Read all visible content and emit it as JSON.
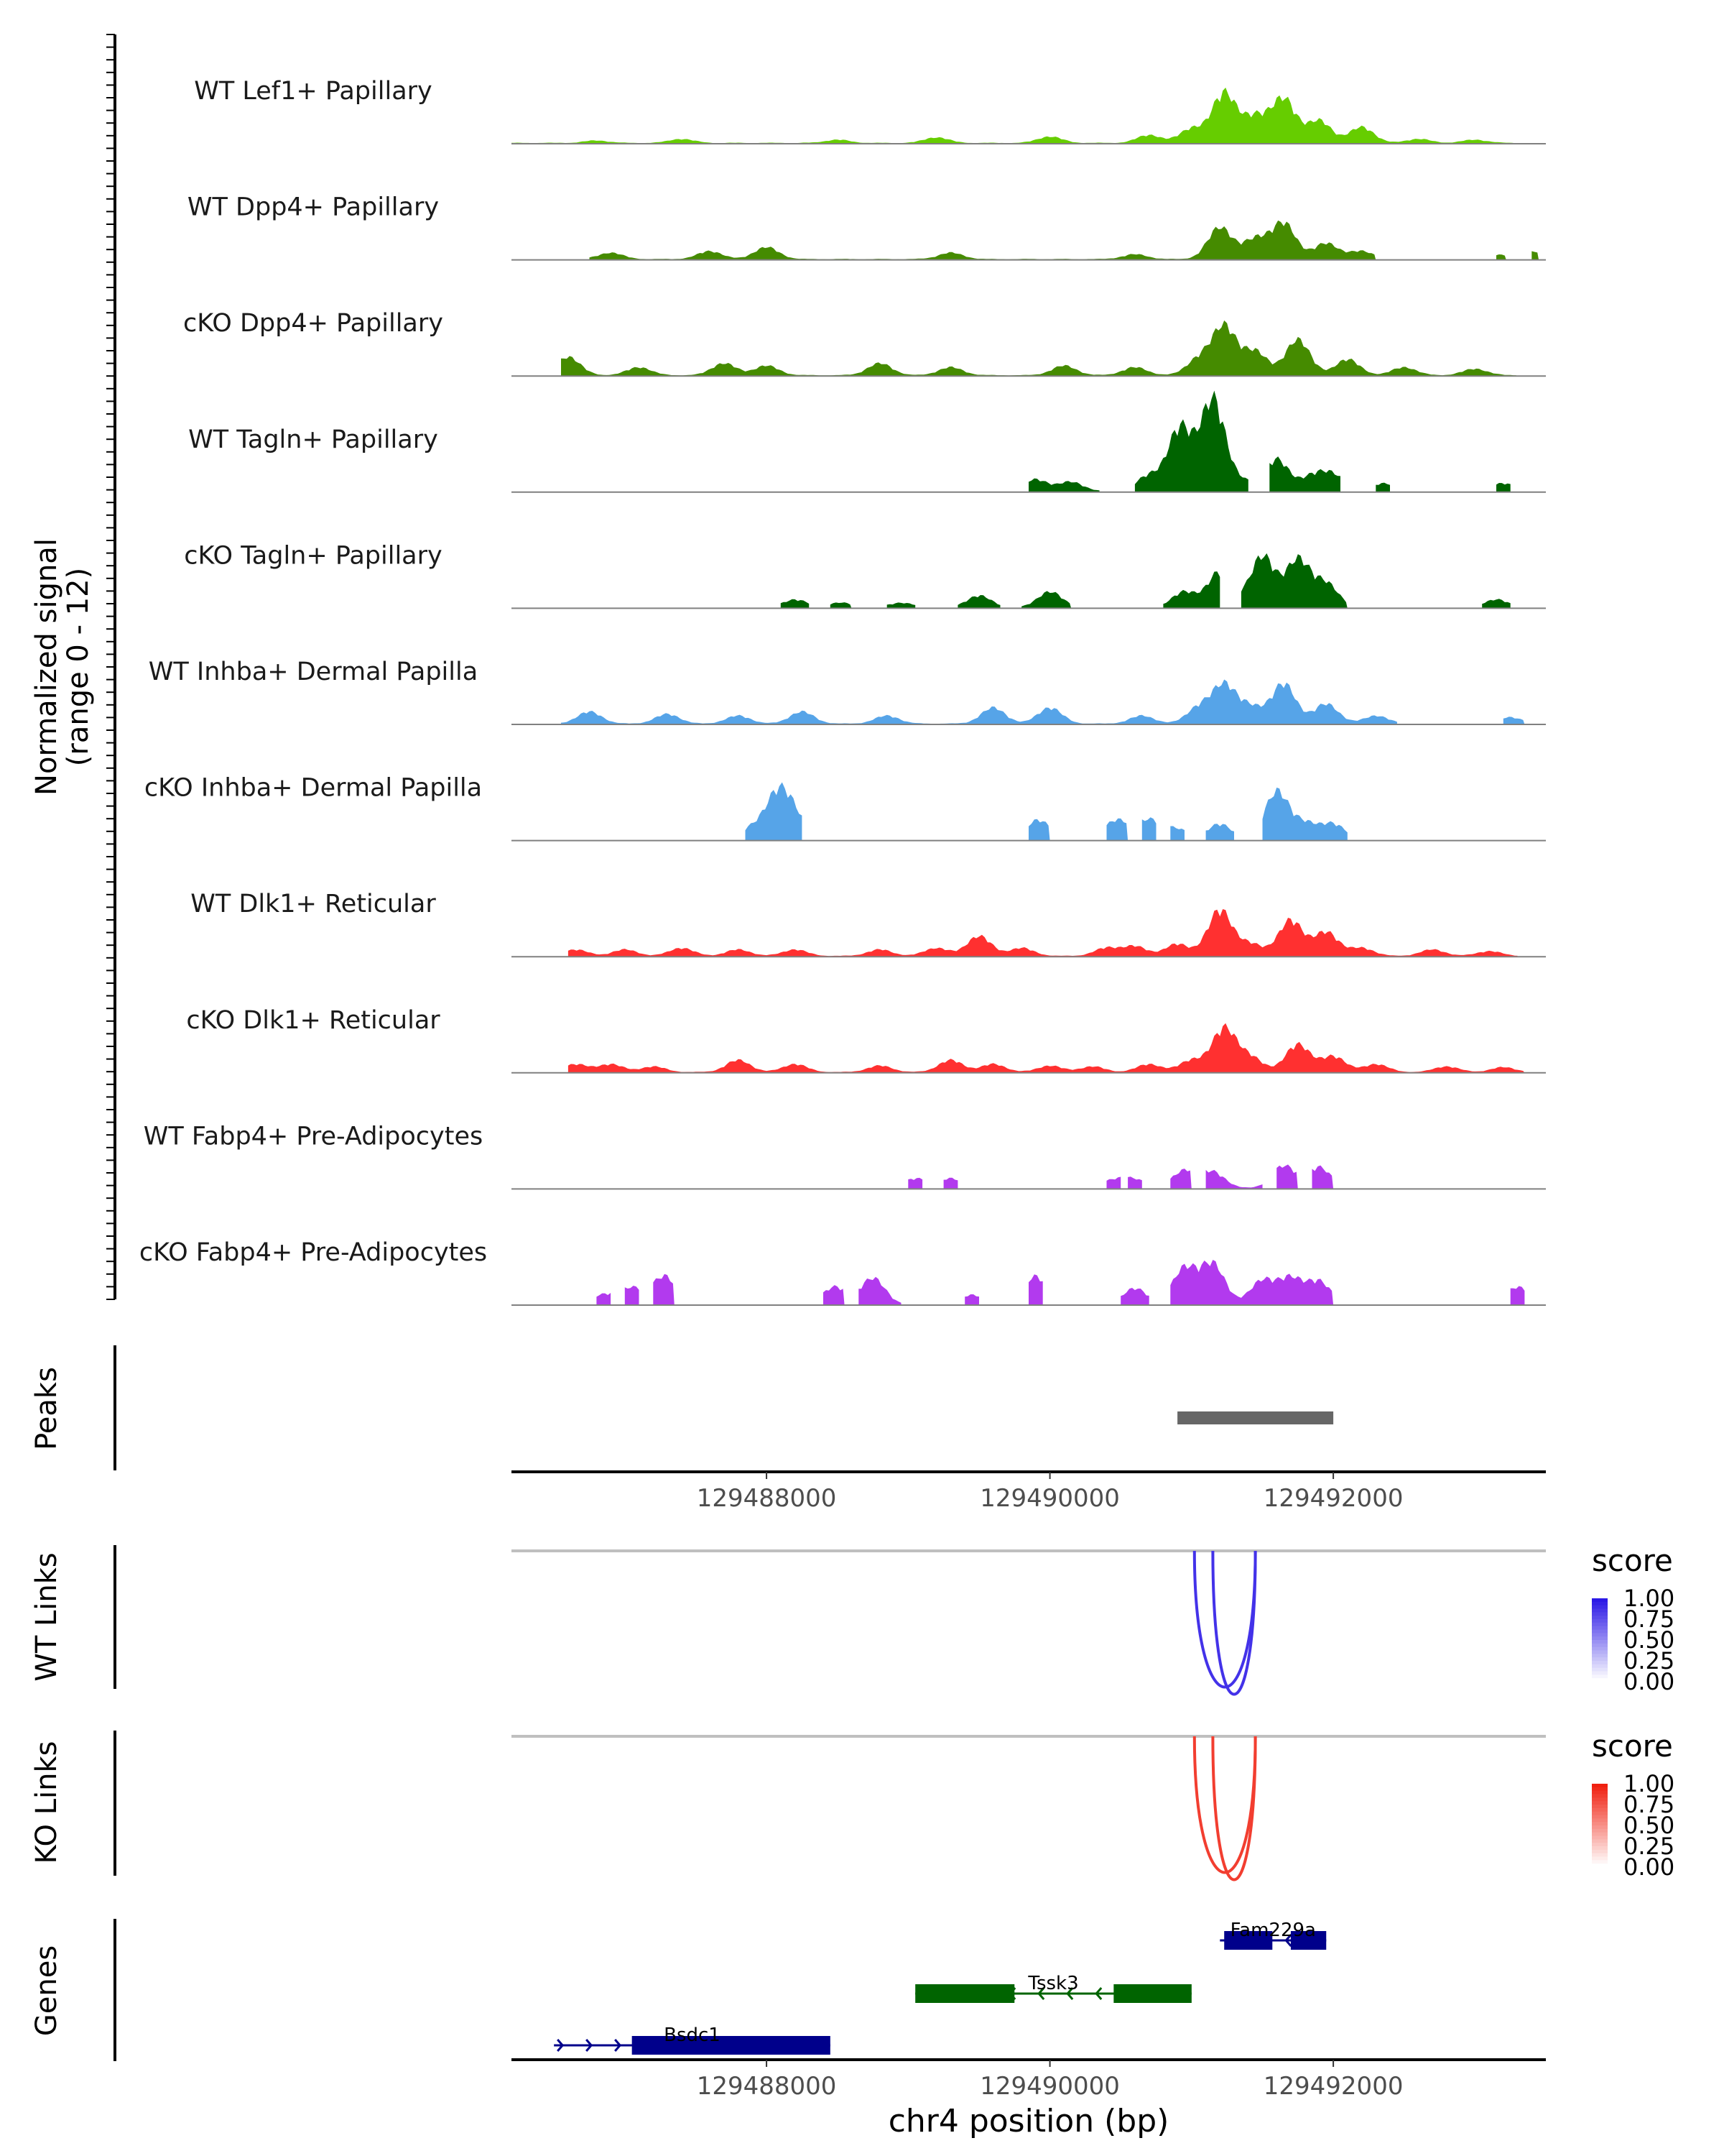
{
  "chart_data": {
    "type": "area",
    "title": "",
    "region": {
      "chromosome": "chr4",
      "xlim": [
        129486200,
        129493500
      ]
    },
    "coverage": {
      "ylabel_line1": "Normalized signal",
      "ylabel_line2": "(range 0 - 12)",
      "ylim": [
        0,
        12
      ],
      "series": [
        {
          "name": "WT Lef1+ Papillary",
          "color": "#66CD00",
          "segments": [
            [
              129486200,
              129493300
            ]
          ],
          "peaks": [
            [
              129486800,
              0.3
            ],
            [
              129487400,
              0.5
            ],
            [
              129488500,
              0.4
            ],
            [
              129489200,
              0.7
            ],
            [
              129490000,
              0.8
            ],
            [
              129490700,
              1.0
            ],
            [
              129491000,
              1.8
            ],
            [
              129491230,
              6.3
            ],
            [
              129491450,
              3.2
            ],
            [
              129491650,
              5.5
            ],
            [
              129491900,
              2.8
            ],
            [
              129492200,
              2.0
            ],
            [
              129492600,
              0.5
            ],
            [
              129493000,
              0.4
            ]
          ]
        },
        {
          "name": "WT Dpp4+ Papillary",
          "color": "#458B00",
          "segments": [
            [
              129486750,
              129492300
            ],
            [
              129493150,
              129493220
            ],
            [
              129493400,
              129493450
            ]
          ],
          "peaks": [
            [
              129486900,
              0.8
            ],
            [
              129487600,
              1.0
            ],
            [
              129488000,
              1.5
            ],
            [
              129489300,
              0.8
            ],
            [
              129490600,
              0.6
            ],
            [
              129491200,
              4.0
            ],
            [
              129491450,
              2.5
            ],
            [
              129491650,
              4.5
            ],
            [
              129491950,
              2.0
            ],
            [
              129492200,
              1.0
            ],
            [
              129493180,
              0.5
            ],
            [
              129493420,
              0.9
            ]
          ]
        },
        {
          "name": "cKO Dpp4+ Papillary",
          "color": "#458B00",
          "segments": [
            [
              129486550,
              129493300
            ]
          ],
          "peaks": [
            [
              129486600,
              2.3
            ],
            [
              129487100,
              1.0
            ],
            [
              129487700,
              1.5
            ],
            [
              129488000,
              1.2
            ],
            [
              129488800,
              1.5
            ],
            [
              129489300,
              1.0
            ],
            [
              129490100,
              1.2
            ],
            [
              129490600,
              1.0
            ],
            [
              129491050,
              2.0
            ],
            [
              129491230,
              6.1
            ],
            [
              129491450,
              3.0
            ],
            [
              129491750,
              4.5
            ],
            [
              129492100,
              2.0
            ],
            [
              129492500,
              1.0
            ],
            [
              129493000,
              0.8
            ]
          ]
        },
        {
          "name": "WT Tagln+ Papillary",
          "color": "#006400",
          "segments": [
            [
              129489850,
              129490350
            ],
            [
              129490600,
              129491400
            ],
            [
              129491550,
              129492050
            ],
            [
              129492300,
              129492400
            ],
            [
              129493150,
              129493250
            ]
          ],
          "peaks": [
            [
              129489900,
              1.5
            ],
            [
              129490150,
              1.2
            ],
            [
              129490700,
              2.0
            ],
            [
              129490920,
              8.0
            ],
            [
              129491150,
              11.5
            ],
            [
              129491350,
              1.2
            ],
            [
              129491600,
              4.0
            ],
            [
              129491850,
              1.8
            ],
            [
              129492000,
              2.0
            ],
            [
              129492350,
              1.0
            ],
            [
              129493200,
              1.0
            ]
          ]
        },
        {
          "name": "cKO Tagln+ Papillary",
          "color": "#006400",
          "segments": [
            [
              129488100,
              129488300
            ],
            [
              129488450,
              129488600
            ],
            [
              129488850,
              129489050
            ],
            [
              129489350,
              129489650
            ],
            [
              129489800,
              129490150
            ],
            [
              129490800,
              129491200
            ],
            [
              129491350,
              129492100
            ],
            [
              129493050,
              129493250
            ]
          ],
          "peaks": [
            [
              129488200,
              1.0
            ],
            [
              129488520,
              0.6
            ],
            [
              129488950,
              0.6
            ],
            [
              129489500,
              1.5
            ],
            [
              129490000,
              2.0
            ],
            [
              129490950,
              2.0
            ],
            [
              129491200,
              4.5
            ],
            [
              129491500,
              6.5
            ],
            [
              129491750,
              6.0
            ],
            [
              129491950,
              3.0
            ],
            [
              129493150,
              1.0
            ]
          ]
        },
        {
          "name": "WT Inhba+ Dermal Papilla",
          "color": "#56A4E8",
          "segments": [
            [
              129486550,
              129492450
            ],
            [
              129493200,
              129493350
            ]
          ],
          "peaks": [
            [
              129486750,
              1.5
            ],
            [
              129487300,
              1.2
            ],
            [
              129487800,
              1.0
            ],
            [
              129488250,
              1.5
            ],
            [
              129488850,
              1.0
            ],
            [
              129489600,
              2.0
            ],
            [
              129490000,
              2.0
            ],
            [
              129490650,
              1.0
            ],
            [
              129491050,
              2.0
            ],
            [
              129491230,
              4.8
            ],
            [
              129491420,
              2.0
            ],
            [
              129491650,
              5.0
            ],
            [
              129491950,
              2.5
            ],
            [
              129492300,
              1.0
            ],
            [
              129493250,
              0.8
            ]
          ]
        },
        {
          "name": "cKO Inhba+ Dermal Papilla",
          "color": "#56A4E8",
          "segments": [
            [
              129487850,
              129488250
            ],
            [
              129489850,
              129490000
            ],
            [
              129490400,
              129490550
            ],
            [
              129490650,
              129490750
            ],
            [
              129490850,
              129490950
            ],
            [
              129491100,
              129491300
            ],
            [
              129491500,
              129492100
            ]
          ],
          "peaks": [
            [
              129487900,
              1.5
            ],
            [
              129488080,
              5.5
            ],
            [
              129488200,
              2.5
            ],
            [
              129489920,
              2.5
            ],
            [
              129490470,
              2.5
            ],
            [
              129490700,
              2.5
            ],
            [
              129490900,
              1.3
            ],
            [
              129491200,
              2.0
            ],
            [
              129491600,
              6.0
            ],
            [
              129491800,
              2.0
            ],
            [
              129492000,
              2.0
            ]
          ]
        },
        {
          "name": "WT Dlk1+ Reticular",
          "color": "#FF3030",
          "segments": [
            [
              129486600,
              129493300
            ]
          ],
          "peaks": [
            [
              129486650,
              0.8
            ],
            [
              129487000,
              0.8
            ],
            [
              129487400,
              1.0
            ],
            [
              129487800,
              0.8
            ],
            [
              129488200,
              0.8
            ],
            [
              129488800,
              0.8
            ],
            [
              129489200,
              1.0
            ],
            [
              129489500,
              2.5
            ],
            [
              129489800,
              1.0
            ],
            [
              129490400,
              1.0
            ],
            [
              129490600,
              1.2
            ],
            [
              129490900,
              1.5
            ],
            [
              129491200,
              5.8
            ],
            [
              129491420,
              1.5
            ],
            [
              129491700,
              4.5
            ],
            [
              129491950,
              3.0
            ],
            [
              129492200,
              1.0
            ],
            [
              129492700,
              0.8
            ],
            [
              129493100,
              0.6
            ]
          ]
        },
        {
          "name": "cKO Dlk1+ Reticular",
          "color": "#FF3030",
          "segments": [
            [
              129486600,
              129493350
            ]
          ],
          "peaks": [
            [
              129486650,
              1.0
            ],
            [
              129486900,
              1.0
            ],
            [
              129487200,
              0.7
            ],
            [
              129487800,
              1.5
            ],
            [
              129488200,
              1.0
            ],
            [
              129488800,
              0.8
            ],
            [
              129489300,
              1.5
            ],
            [
              129489600,
              1.0
            ],
            [
              129490000,
              0.8
            ],
            [
              129490300,
              0.7
            ],
            [
              129490700,
              1.0
            ],
            [
              129491000,
              1.5
            ],
            [
              129491230,
              5.5
            ],
            [
              129491420,
              1.8
            ],
            [
              129491750,
              3.5
            ],
            [
              129492000,
              2.0
            ],
            [
              129492300,
              1.0
            ],
            [
              129492800,
              0.7
            ],
            [
              129493200,
              0.6
            ]
          ]
        },
        {
          "name": "WT Fabp4+ Pre-Adipocytes",
          "color": "#B23AEE",
          "segments": [
            [
              129489000,
              129489100
            ],
            [
              129489250,
              129489350
            ],
            [
              129490400,
              129490500
            ],
            [
              129490550,
              129490650
            ],
            [
              129490850,
              129491000
            ],
            [
              129491100,
              129491500
            ],
            [
              129491600,
              129491750
            ],
            [
              129491850,
              129492000
            ]
          ],
          "peaks": [
            [
              129489050,
              1.2
            ],
            [
              129489300,
              1.2
            ],
            [
              129490450,
              1.0
            ],
            [
              129490600,
              1.0
            ],
            [
              129490950,
              2.2
            ],
            [
              129491150,
              2.0
            ],
            [
              129491650,
              2.8
            ],
            [
              129491900,
              2.6
            ]
          ]
        },
        {
          "name": "cKO Fabp4+ Pre-Adipocytes",
          "color": "#B23AEE",
          "segments": [
            [
              129486800,
              129486900
            ],
            [
              129487000,
              129487100
            ],
            [
              129487200,
              129487350
            ],
            [
              129488400,
              129488550
            ],
            [
              129488650,
              129488950
            ],
            [
              129489400,
              129489500
            ],
            [
              129489850,
              129489950
            ],
            [
              129490500,
              129490700
            ],
            [
              129490850,
              129492000
            ],
            [
              129493250,
              129493350
            ]
          ],
          "peaks": [
            [
              129486850,
              1.2
            ],
            [
              129487050,
              2.0
            ],
            [
              129487280,
              3.5
            ],
            [
              129488480,
              2.2
            ],
            [
              129488750,
              3.3
            ],
            [
              129489450,
              1.2
            ],
            [
              129489900,
              3.5
            ],
            [
              129490600,
              2.0
            ],
            [
              129490950,
              4.5
            ],
            [
              129491150,
              5.0
            ],
            [
              129491500,
              3.0
            ],
            [
              129491700,
              3.2
            ],
            [
              129491900,
              2.8
            ],
            [
              129493300,
              2.2
            ]
          ]
        }
      ]
    },
    "peaks_track": {
      "label": "Peaks",
      "intervals": [
        [
          129490900,
          129492000
        ]
      ],
      "color": "#666666"
    },
    "position_axis": {
      "ticks": [
        129488000,
        129490000,
        129492000
      ],
      "tick_labels": [
        "129488000",
        "129490000",
        "129492000"
      ]
    },
    "links": [
      {
        "label": "WT Links",
        "legend_title": "score",
        "color_high": "#2B18E6",
        "legend_ticks": [
          "1.00",
          "0.75",
          "0.50",
          "0.25",
          "0.00"
        ],
        "arcs": [
          {
            "start": 129491020,
            "end": 129491450,
            "score": 0.75
          },
          {
            "start": 129491150,
            "end": 129491450,
            "score": 0.75
          }
        ]
      },
      {
        "label": "KO Links",
        "legend_title": "score",
        "color_high": "#F02010",
        "legend_ticks": [
          "1.00",
          "0.75",
          "0.50",
          "0.25",
          "0.00"
        ],
        "arcs": [
          {
            "start": 129491020,
            "end": 129491450,
            "score": 0.7
          },
          {
            "start": 129491150,
            "end": 129491450,
            "score": 0.7
          }
        ]
      }
    ],
    "genes_track": {
      "label": "Genes",
      "genes": [
        {
          "name": "Fam229a",
          "start": 129491200,
          "end": 129491950,
          "strand": "-",
          "row": 0,
          "color": "#00008B",
          "exons": [
            [
              129491230,
              129491570
            ],
            [
              129491700,
              129491950
            ]
          ]
        },
        {
          "name": "Tssk3",
          "start": 129489050,
          "end": 129491000,
          "strand": "-",
          "row": 1,
          "color": "#006400",
          "exons": [
            [
              129489050,
              129489750
            ],
            [
              129490450,
              129491000
            ]
          ]
        },
        {
          "name": "Bsdc1",
          "start": 129486500,
          "end": 129488450,
          "strand": "+",
          "row": 2,
          "color": "#00008B",
          "exons": [
            [
              129487050,
              129488450
            ]
          ]
        }
      ]
    },
    "xlabel": "chr4 position (bp)"
  }
}
